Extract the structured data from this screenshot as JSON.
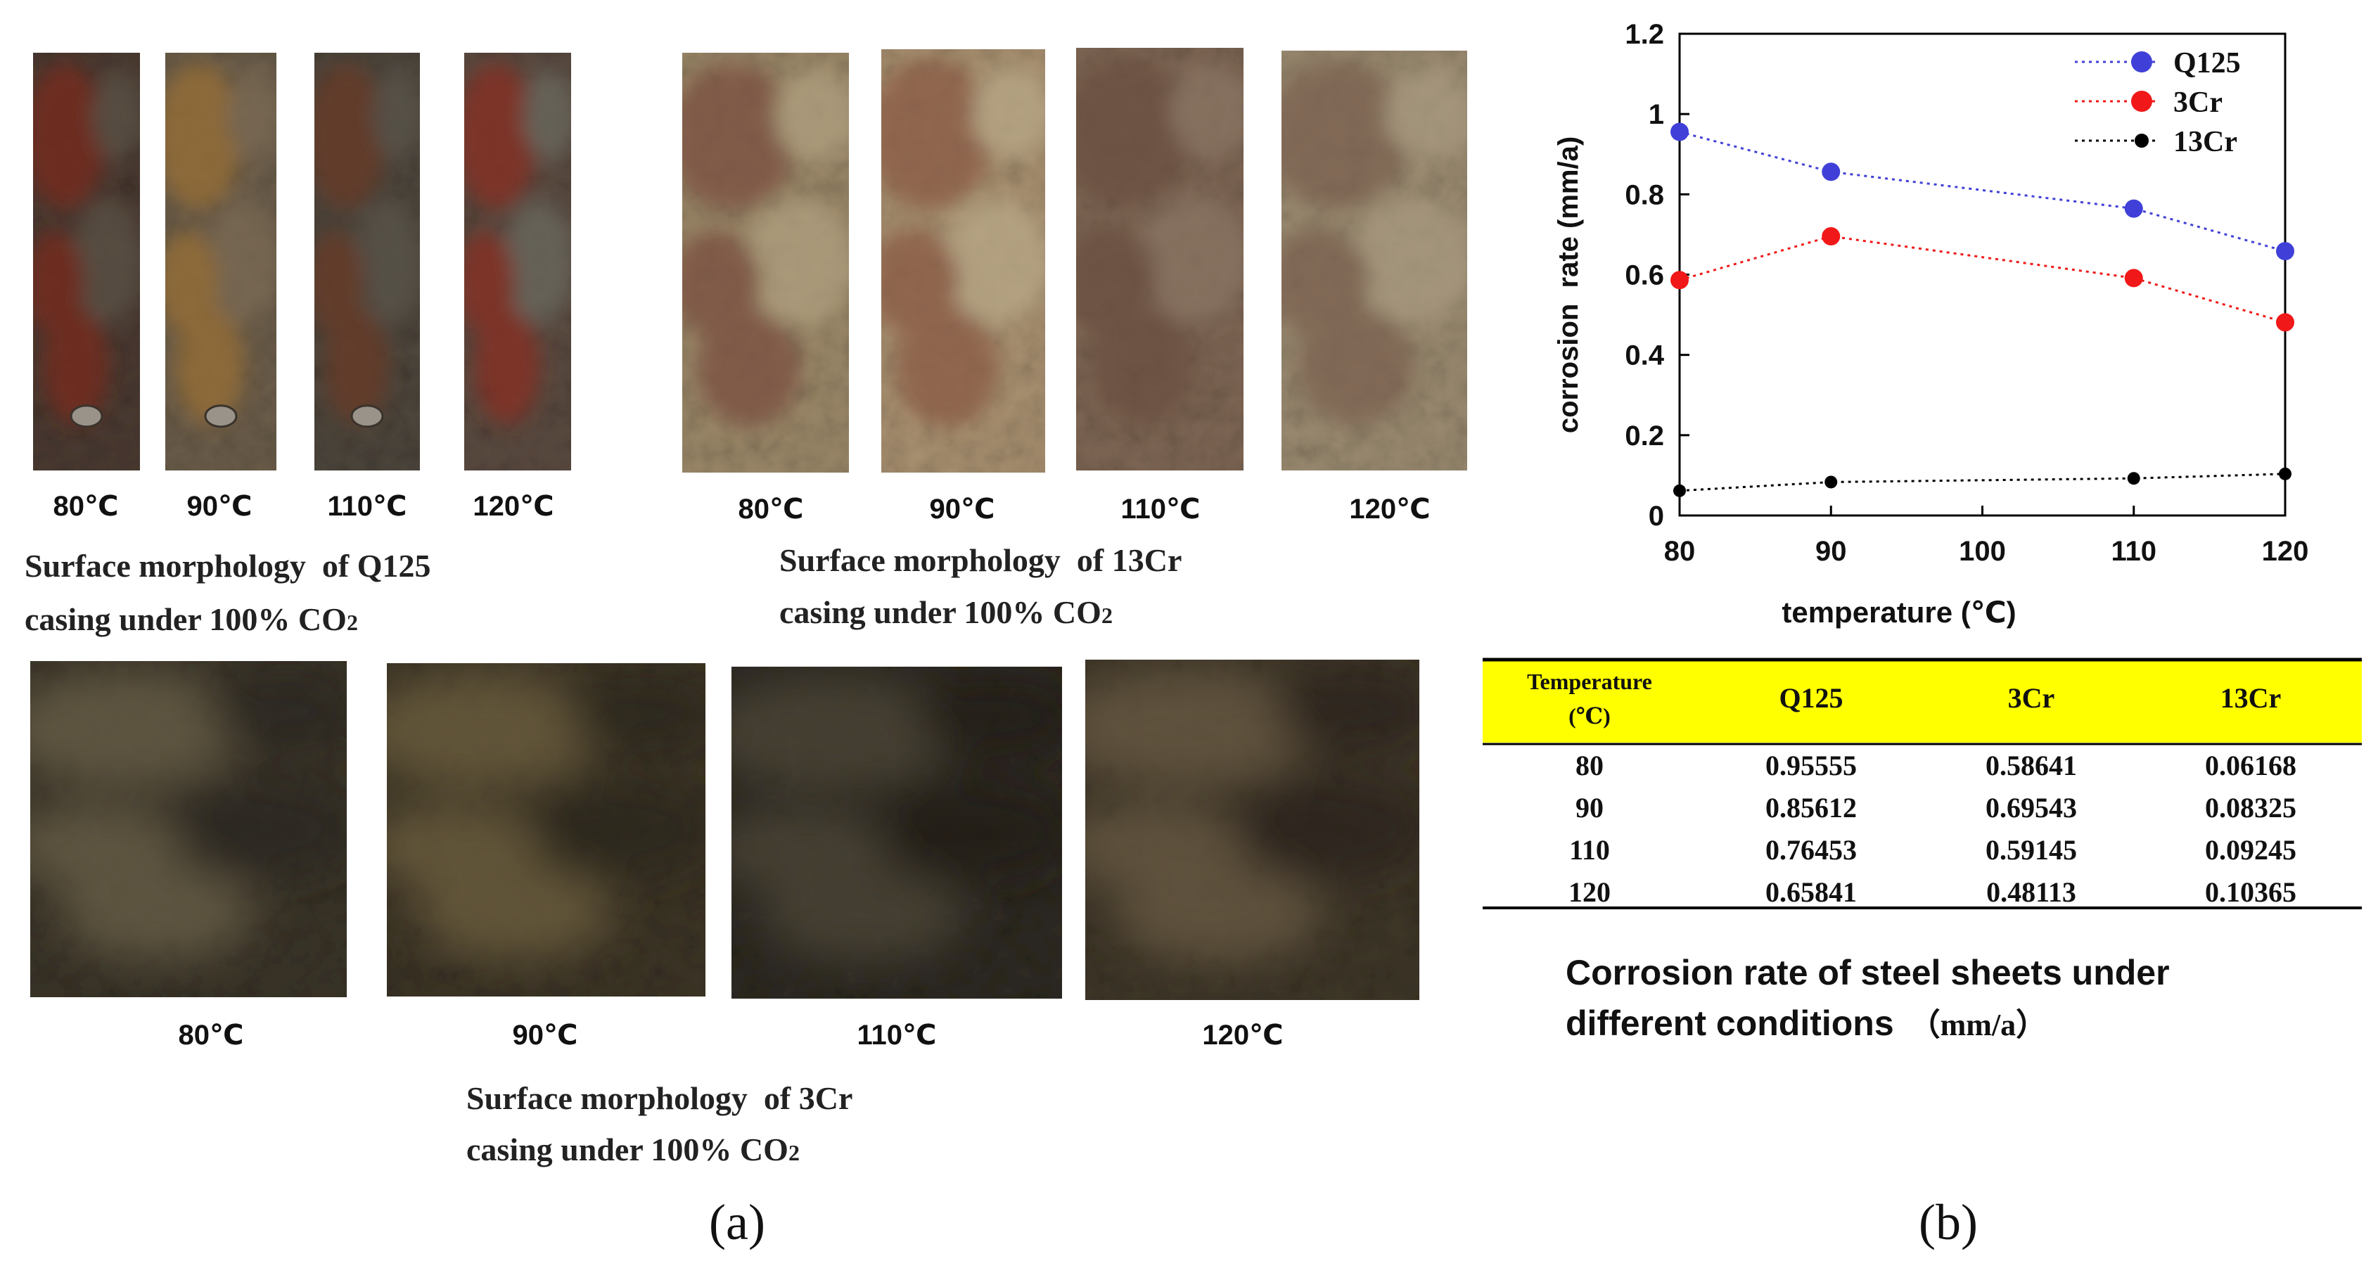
{
  "panel_a": {
    "label": "(a)",
    "q125": {
      "caption_line1": "Surface morphology  of Q125",
      "caption_line2_pre": "casing under 100% CO",
      "caption_sub": "2",
      "samples": [
        {
          "temp": "80℃",
          "base": "#4a3a32",
          "rust": "#7a2a1c",
          "rust2": "#5c5247",
          "hole": true
        },
        {
          "temp": "90℃",
          "base": "#6b5d4a",
          "rust": "#9a7035",
          "rust2": "#7a6a55",
          "hole": true
        },
        {
          "temp": "110℃",
          "base": "#4d463c",
          "rust": "#6a3a28",
          "rust2": "#5a554c",
          "hole": true
        },
        {
          "temp": "120℃",
          "base": "#5a4a40",
          "rust": "#8a2e22",
          "rust2": "#6a6a60",
          "hole": false
        }
      ]
    },
    "cr13": {
      "caption_line1": "Surface morphology  of 13Cr",
      "caption_line2_pre": "casing under 100% CO",
      "caption_sub": "2",
      "samples": [
        {
          "temp": "80℃",
          "base": "#9a8768",
          "rust": "#7a5040",
          "rust2": "#b0a080",
          "hole": false
        },
        {
          "temp": "90℃",
          "base": "#a89070",
          "rust": "#8a5a44",
          "rust2": "#b8a888",
          "hole": false
        },
        {
          "temp": "110℃",
          "base": "#7e6654",
          "rust": "#6a5040",
          "rust2": "#8a7464",
          "hole": false
        },
        {
          "temp": "120℃",
          "base": "#9a8a70",
          "rust": "#7a6050",
          "rust2": "#a89a80",
          "hole": false
        }
      ]
    },
    "cr3": {
      "caption_line1": "Surface morphology  of 3Cr",
      "caption_line2_pre": "casing under 100% CO",
      "caption_sub": "2",
      "samples": [
        {
          "temp": "80℃",
          "base": "#3a3428",
          "rust": "#6a6048",
          "rust2": "#2a2620",
          "hole": false
        },
        {
          "temp": "90℃",
          "base": "#3c3426",
          "rust": "#6e6040",
          "rust2": "#2c261e",
          "hole": false
        },
        {
          "temp": "110℃",
          "base": "#2e2a22",
          "rust": "#4e4638",
          "rust2": "#221e18",
          "hole": false
        },
        {
          "temp": "120℃",
          "base": "#3e3628",
          "rust": "#6a5c44",
          "rust2": "#2a241c",
          "hole": false
        }
      ]
    }
  },
  "panel_b": {
    "label": "(b)",
    "chart_data": {
      "type": "line",
      "xlabel": "temperature (℃)",
      "ylabel": "corrosion  rate (mm/a)",
      "x": [
        80,
        90,
        110,
        120
      ],
      "xticks": [
        80,
        90,
        100,
        110,
        120
      ],
      "yticks": [
        0,
        0.2,
        0.4,
        0.6,
        0.8,
        1,
        1.2
      ],
      "xlim": [
        80,
        120
      ],
      "ylim": [
        0,
        1.2
      ],
      "legend_position": "top-right",
      "series": [
        {
          "name": "Q125",
          "values": [
            0.95555,
            0.85612,
            0.76453,
            0.65841
          ],
          "color": "#4040d8",
          "marker": "large"
        },
        {
          "name": "3Cr",
          "values": [
            0.58641,
            0.69543,
            0.59145,
            0.48113
          ],
          "color": "#f01818",
          "marker": "large"
        },
        {
          "name": "13Cr",
          "values": [
            0.06168,
            0.08325,
            0.09245,
            0.10365
          ],
          "color": "#000000",
          "marker": "small"
        }
      ]
    },
    "table": {
      "header_bg": "#ffff00",
      "header_temp_line1": "Temperature",
      "header_temp_line2": "(℃)",
      "headers": [
        "Q125",
        "3Cr",
        "13Cr"
      ],
      "rows": [
        [
          "80",
          "0.95555",
          "0.58641",
          "0.06168"
        ],
        [
          "90",
          "0.85612",
          "0.69543",
          "0.08325"
        ],
        [
          "110",
          "0.76453",
          "0.59145",
          "0.09245"
        ],
        [
          "120",
          "0.65841",
          "0.48113",
          "0.10365"
        ]
      ]
    },
    "caption_line1": "Corrosion rate of steel sheets under",
    "caption_line2": "different conditions",
    "caption_unit": "（mm/a）"
  }
}
